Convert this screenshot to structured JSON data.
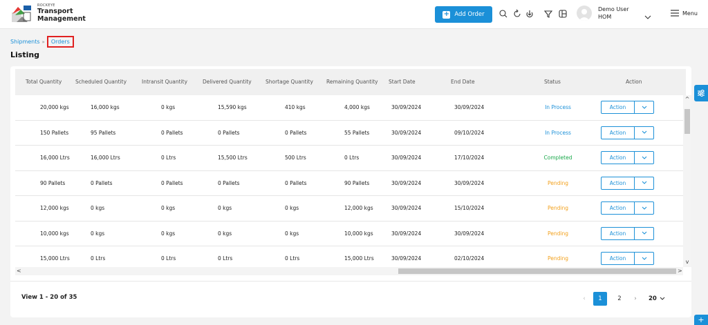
{
  "brand": {
    "small": "ROCKEYE",
    "line1": "Transport",
    "line2": "Management"
  },
  "header": {
    "add_order_label": "Add Order",
    "user_name": "Demo User",
    "user_role": "HOM",
    "menu_label": "Menu",
    "icons": [
      "search-icon",
      "refresh-icon",
      "download-icon",
      "filter-icon",
      "columns-icon"
    ]
  },
  "breadcrumb": {
    "parent": "Shipments",
    "current": "Orders"
  },
  "page_title": "Listing",
  "table": {
    "columns": [
      "Total Quantity",
      "Scheduled Quantity",
      "Intransit Quantity",
      "Delivered Quantity",
      "Shortage Quantity",
      "Remaining Quantity",
      "Start Date",
      "End Date",
      "Status",
      "Action"
    ],
    "rows": [
      {
        "total": "20,000 kgs",
        "scheduled": "16,000 kgs",
        "intransit": "0 kgs",
        "delivered": "15,590 kgs",
        "shortage": "410 kgs",
        "remaining": "4,000 kgs",
        "start": "30/09/2024",
        "end": "30/09/2024",
        "status": "In Process",
        "status_type": "process",
        "action": "Action"
      },
      {
        "total": "150 Pallets",
        "scheduled": "95 Pallets",
        "intransit": "0 Pallets",
        "delivered": "0 Pallets",
        "shortage": "0 Pallets",
        "remaining": "55 Pallets",
        "start": "30/09/2024",
        "end": "09/10/2024",
        "status": "In Process",
        "status_type": "process",
        "action": "Action"
      },
      {
        "total": "16,000 Ltrs",
        "scheduled": "16,000 Ltrs",
        "intransit": "0 Ltrs",
        "delivered": "15,500 Ltrs",
        "shortage": "500 Ltrs",
        "remaining": "0 Ltrs",
        "start": "30/09/2024",
        "end": "17/10/2024",
        "status": "Completed",
        "status_type": "completed",
        "action": "Action"
      },
      {
        "total": "90 Pallets",
        "scheduled": "0 Pallets",
        "intransit": "0 Pallets",
        "delivered": "0 Pallets",
        "shortage": "0 Pallets",
        "remaining": "90 Pallets",
        "start": "30/09/2024",
        "end": "30/09/2024",
        "status": "Pending",
        "status_type": "pending",
        "action": "Action"
      },
      {
        "total": "12,000 kgs",
        "scheduled": "0 kgs",
        "intransit": "0 kgs",
        "delivered": "0 kgs",
        "shortage": "0 kgs",
        "remaining": "12,000 kgs",
        "start": "30/09/2024",
        "end": "15/10/2024",
        "status": "Pending",
        "status_type": "pending",
        "action": "Action"
      },
      {
        "total": "10,000 kgs",
        "scheduled": "0 kgs",
        "intransit": "0 kgs",
        "delivered": "0 kgs",
        "shortage": "0 kgs",
        "remaining": "10,000 kgs",
        "start": "30/09/2024",
        "end": "30/09/2024",
        "status": "Pending",
        "status_type": "pending",
        "action": "Action"
      },
      {
        "total": "15,000 Ltrs",
        "scheduled": "0 Ltrs",
        "intransit": "0 Ltrs",
        "delivered": "0 Ltrs",
        "shortage": "0 Ltrs",
        "remaining": "15,000 Ltrs",
        "start": "30/09/2024",
        "end": "02/10/2024",
        "status": "Pending",
        "status_type": "pending",
        "action": "Action"
      }
    ]
  },
  "pagination": {
    "view_text": "View 1 - 20 of 35",
    "pages": [
      "1",
      "2"
    ],
    "current_page": "1",
    "page_size": "20"
  },
  "colors": {
    "primary": "#1b90d8",
    "completed": "#19a84a",
    "pending": "#f2a01b",
    "highlight_border": "#e02020"
  }
}
